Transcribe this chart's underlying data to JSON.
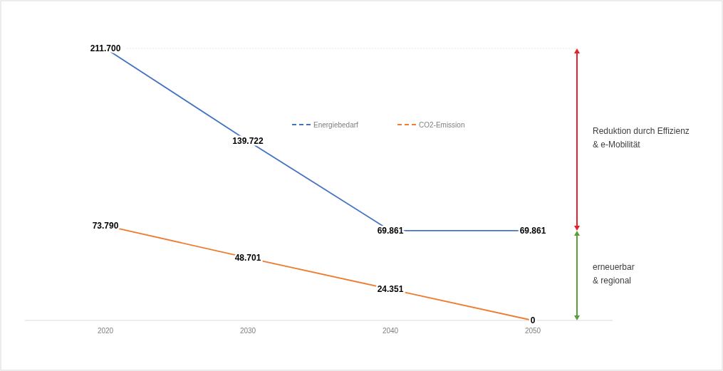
{
  "chart_data": {
    "type": "line",
    "categories": [
      "2020",
      "2030",
      "2040",
      "2050"
    ],
    "series": [
      {
        "name": "Energiebedarf",
        "color": "#4472c4",
        "values": [
          211700,
          139722,
          69861,
          69861
        ],
        "value_labels": [
          "211.700",
          "139.722",
          "69.861",
          "69.861"
        ]
      },
      {
        "name": "CO2-Emission",
        "color": "#ed7d31",
        "values": [
          73790,
          48701,
          24351,
          0
        ],
        "value_labels": [
          "73.790",
          "48.701",
          "24.351",
          "0"
        ]
      }
    ],
    "annotations": [
      "Reduktion durch Effizienz\n& e-Mobilität",
      "erneuerbar\n& regional"
    ],
    "legend": "top",
    "line_style": "solid",
    "marker": "none",
    "grid": false
  }
}
